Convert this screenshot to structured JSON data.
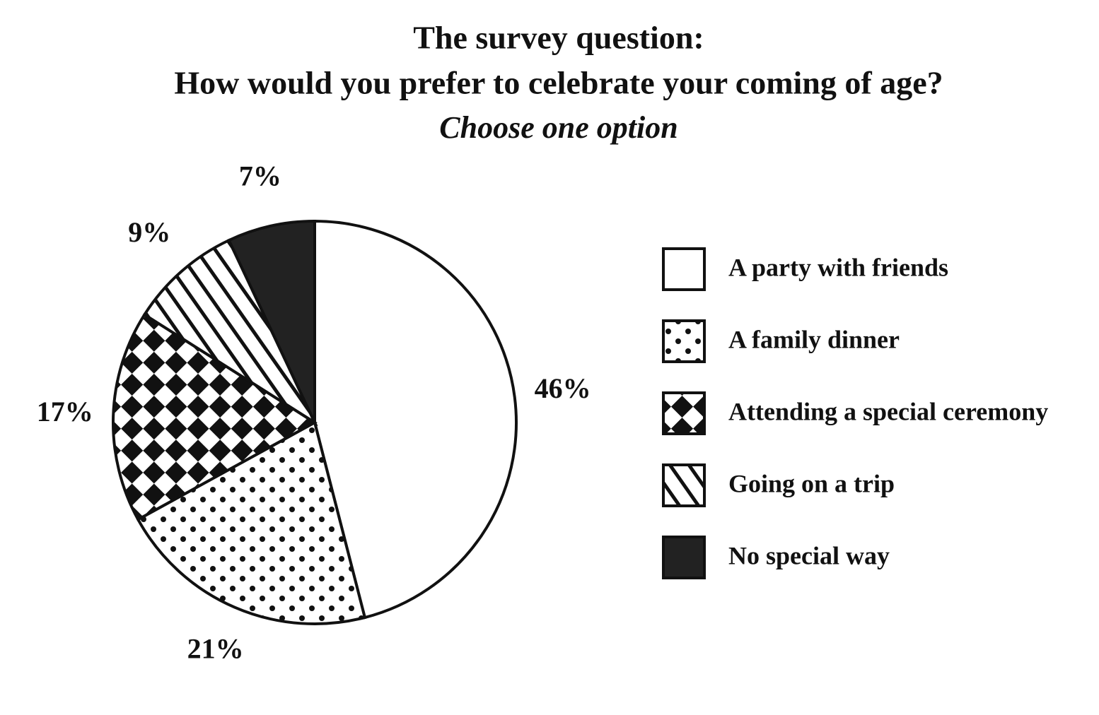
{
  "chart_data": {
    "type": "pie",
    "title": "The survey question:",
    "subtitle": "How would you prefer to celebrate your coming of age?",
    "note": "Choose one option",
    "categories": [
      "A party with friends",
      "A family dinner",
      "Attending a special ceremony",
      "Going on a trip",
      "No special way"
    ],
    "values": [
      46,
      21,
      17,
      9,
      7
    ],
    "value_labels": [
      "46%",
      "21%",
      "17%",
      "9%",
      "7%"
    ],
    "patterns": [
      "none",
      "dots",
      "checkers",
      "stripes",
      "solid"
    ],
    "legend": "right"
  }
}
